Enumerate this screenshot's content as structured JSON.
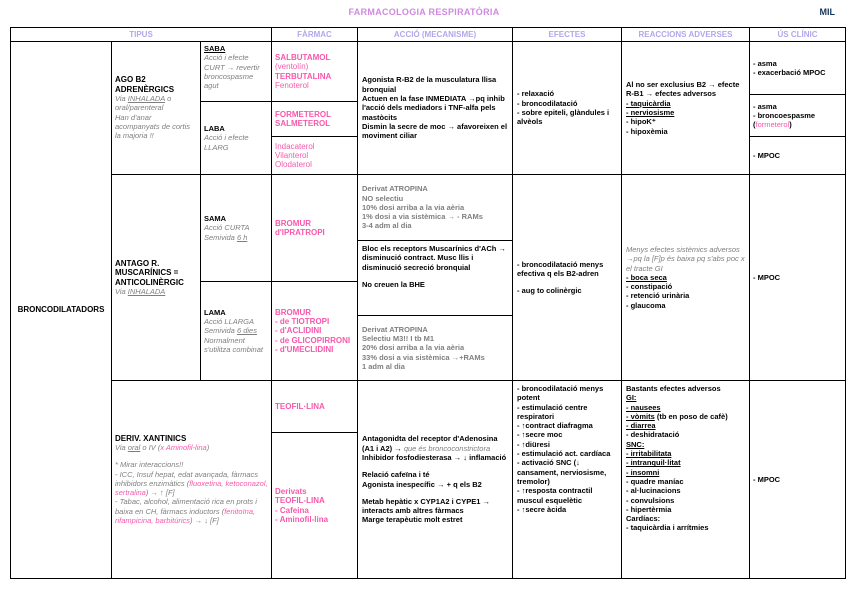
{
  "colors": {
    "pink": "#f858ac",
    "orchid": "#cf8ae0",
    "header_purple": "#b3a6ea",
    "gray": "#7f7f7f",
    "navy": "#17365d"
  },
  "page": {
    "title": "FARMACOLOGIA RESPIRATÒRIA",
    "badge": "MIL"
  },
  "headers": {
    "tipus": "TIPUS",
    "farmac": "FÀRMAC",
    "accio": "ACCIÓ (MECANISME)",
    "efectes": "EFECTES",
    "reaccions": "REACCIONS ADVERSES",
    "us": "ÚS CLÍNIC"
  },
  "group": "BRONCODILATADORS",
  "r1": {
    "tipus_title": "AGO B2 ADRENÈRGICS",
    "via_pre": "Via ",
    "via_u": "INHALADA",
    "via_post": " o oral/parenteral",
    "note": "Han d'anar acompanyats de cortis la majoria !!",
    "saba": "SABA",
    "saba_desc": "Acció i efecte CURT → revertir broncospasme agut",
    "laba": "LABA",
    "laba_desc": "Acció i efecte LLARG",
    "farmac1": [
      "SALBUTAMOL",
      "(ventolín)",
      "TERBUTALINA",
      "Fenoterol"
    ],
    "farmac2": [
      "FORMETEROL",
      "SALMETEROL"
    ],
    "farmac3": [
      "Indacaterol",
      "Vilanterol",
      "Olodaterol"
    ],
    "accio": [
      "Agonista R-B2 de la musculatura llisa bronquial",
      "Actuen en la fase INMEDIATA →pq inhib l'acció dels mediadors i TNF-alfa pels mastòcits",
      "Dismin la secre de moc → afavoreixen el moviment ciliar"
    ],
    "efectes": [
      "- relaxació",
      "- broncodilatació",
      "- sobre epiteli, glàndules i alvèols"
    ],
    "ra_intro": "Al no ser exclusius B2 → efecte R-B1 → efectes adversos",
    "ra_u1": "- taquicàrdia",
    "ra_u2": "- nerviosisme",
    "ra_3": "- hipoK⁺",
    "ra_4": "- hipoxèmia",
    "us1": [
      "- asma",
      "- exacerbació MPOC"
    ],
    "us2_l1": "- asma",
    "us2_l2": "- broncoespasme",
    "us2_par_open": "(",
    "us2_pink": "formeterol",
    "us2_par_close": ")",
    "us3": "- MPOC"
  },
  "r2": {
    "tipus_title": "ANTAGO R. MUSCARÍNICS = ANTICOLINÈRGIC",
    "via_pre": "Via ",
    "via_u": "INHALADA",
    "sama": "SAMA",
    "sama_d1": "Acció CURTA",
    "sama_d2pre": "Semivida ",
    "sama_d2u": "6 h",
    "lama": "LAMA",
    "lama_d1": "Acció LLARGA",
    "lama_d2pre": "Semivida ",
    "lama_d2u": "6 dies",
    "lama_d3": "Normalment s'utilitza combinat",
    "farmac1": [
      "BROMUR",
      "d'IPRATROPI"
    ],
    "farmac2": [
      "BROMUR",
      "- de TIOTROPI",
      "- d'ACLIDINI",
      "- de GLICOPIRRONI",
      "- d'UMECLIDINI"
    ],
    "accio1": [
      "Derivat ATROPINA",
      "NO selectiu",
      "10% dosi arriba a la via aèria",
      "1% dosi a via sistèmica → - RAMs",
      "3-4 adm al dia"
    ],
    "accio2_main": "Bloc els receptors Muscarínics d'ACh → disminució contract. Musc llis i disminució secreció bronquial",
    "accio2_bold": "No creuen la BHE",
    "accio3": [
      "Derivat ATROPINA",
      "Selectiu M3!! I tb M1",
      "20% dosi arriba a la via aèria",
      "33% dosi a via sistèmica →+RAMs",
      "1 adm al dia"
    ],
    "efectes": [
      "- broncodilatació menys efectiva q els B2-adren",
      "- aug to colinèrgic"
    ],
    "ra_intro": "Menys efectes sistèmics adversos →pq la [F]p és baixa pq s'abs poc x el tracte GI",
    "ra_u1": "- boca seca",
    "ra_2": "- constipació",
    "ra_3": "- retenció urinària",
    "ra_4": "- glaucoma",
    "us": "- MPOC"
  },
  "r3": {
    "tipus_title": "DERIV. XANTINICS",
    "via_pre": "Via ",
    "via_u": "oral",
    "via_mid": " o IV (",
    "via_pink": "x Aminofil-lina",
    "via_post": ")",
    "note": "* Mirar interaccions!!",
    "int1_pre": "- ICC, Insuf hepat, edat avançada, fàrmacs inhibidors enzimàtics (",
    "int1_pink": "fluoxetina, ketoconazol, sertralina",
    "int1_post": ") → ↑ [F]",
    "int2_pre": "- Tabac, alcohol, alimentació rica en prots i baixa en CH, fàrmacs inductors (",
    "int2_pink": "fenitoïna, rifampicina, barbitúrics",
    "int2_post": ") → ↓ [F]",
    "farmac1": "TEOFIL·LINA",
    "farmac2": [
      "Derivats",
      "TEOFIL-LINA",
      "- Cafeina",
      "- Aminofil-lina"
    ],
    "accio_l1_bold": "Antagonidta del receptor d'Adenosina (A1 i A2) → ",
    "accio_l1_gray": "que és broncoconstrictora",
    "accio_l2": "Inhibidor fosfodiesterasa → ↓ inflamació",
    "accio_l3": "Relació cafeïna i té",
    "accio_l4": "Agonista inespecífic → + q els B2",
    "accio_l5": "Metab hepàtic x CYP1A2 i CYPE1 → interacts amb altres fàrmacs",
    "accio_l6": "Marge terapèutic molt estret",
    "efectes": [
      "- broncodilatació menys potent",
      "- estimulació centre respiratori",
      "- ↑contract diafragma",
      "- ↑secre moc",
      "- ↑diüresi",
      "- estimulació act. cardíaca",
      "- activació SNC (↓ cansament, nerviosisme, tremolor)",
      "- ↑resposta contractil muscul esquelètic",
      "- ↑secre àcida"
    ],
    "ra_intro": "Bastants efectes adversos",
    "ra_gi": "GI:",
    "ra_gi1": "- nausees",
    "ra_gi2_u": "- vòmits",
    "ra_gi2_rest": " (tb en poso de cafè)",
    "ra_gi3": "- diarrea",
    "ra_gi4": "- deshidratació",
    "ra_snc": "SNC:",
    "ra_snc1": "- irritabilitata",
    "ra_snc2": "- intranquil·litat",
    "ra_snc3": "- insomni",
    "ra_snc4": "- quadre maníac",
    "ra_snc5": "- al·lucinacions",
    "ra_snc6": "- convulsions",
    "ra_snc7": "- hipertèrmia",
    "ra_card": "Cardíacs:",
    "ra_card1": "- taquicàrdia i arrítmies",
    "us": "- MPOC"
  }
}
